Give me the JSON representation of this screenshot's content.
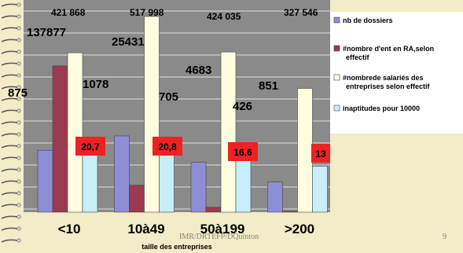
{
  "chart_data": {
    "type": "bar",
    "xlabel": "taille des entreprises",
    "categories": [
      "<10",
      "10à49",
      "50à199",
      ">200"
    ],
    "series": [
      {
        "name": "nb de dossiers",
        "values": [
          875,
          1078,
          705,
          426
        ],
        "labels": [
          "875",
          "1078",
          "705",
          "426"
        ],
        "color": "#8e8ed6"
      },
      {
        "name": "#nombre d'ent en RA,selon effectif",
        "values": [
          137877,
          25431,
          4683,
          851
        ],
        "labels": [
          "137877",
          "25431",
          "4683",
          "851"
        ],
        "color": "#9b3a52"
      },
      {
        "name": "#nombrede salariés des entreprises selon effectif",
        "values": [
          421868,
          517998,
          424035,
          327546
        ],
        "labels": [
          "421 868",
          "517 998",
          "424 035",
          "327 546"
        ],
        "color": "#fffde0"
      },
      {
        "name": "inaptitudes pour 10000",
        "values": [
          20.7,
          20.8,
          16.6,
          13
        ],
        "labels": [
          "20,7",
          "20,8",
          "16,6",
          "13"
        ],
        "color": "#c8eefa"
      }
    ],
    "grid": true,
    "legend": "right"
  },
  "footer": {
    "credit": "IMR/DRTEFP/DQuinton",
    "page_number": "9"
  }
}
